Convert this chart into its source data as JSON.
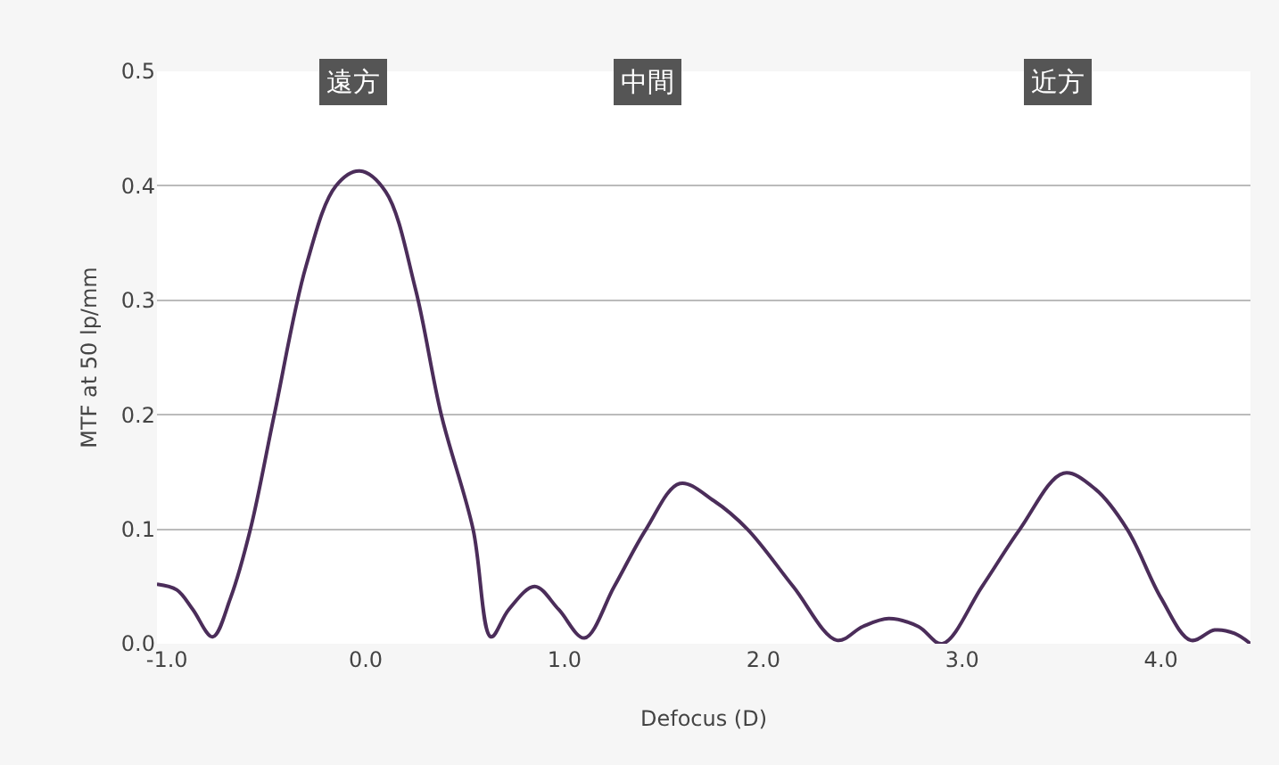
{
  "chart_data": {
    "type": "line",
    "xlabel": "Defocus (D)",
    "ylabel": "MTF at 50 lp/mm",
    "x": [
      -1.05,
      -0.95,
      -0.87,
      -0.77,
      -0.68,
      -0.58,
      -0.46,
      -0.3,
      -0.15,
      -0.03,
      0.1,
      0.25,
      0.38,
      0.54,
      0.63,
      0.72,
      0.85,
      0.97,
      1.1,
      1.25,
      1.41,
      1.58,
      1.75,
      1.92,
      2.15,
      2.37,
      2.5,
      2.63,
      2.78,
      2.9,
      3.1,
      3.29,
      3.51,
      3.67,
      3.83,
      4.0,
      4.15,
      4.27,
      4.37,
      4.45
    ],
    "series": [
      {
        "color": "#4b2d5a",
        "values": [
          0.052,
          0.047,
          0.03,
          0.006,
          0.04,
          0.1,
          0.2,
          0.33,
          0.4,
          0.413,
          0.395,
          0.31,
          0.2,
          0.1,
          0.006,
          0.03,
          0.05,
          0.03,
          0.005,
          0.05,
          0.1,
          0.14,
          0.125,
          0.1,
          0.05,
          0.003,
          0.015,
          0.022,
          0.015,
          0.0,
          0.05,
          0.1,
          0.149,
          0.135,
          0.1,
          0.04,
          0.003,
          0.012,
          0.009,
          0.0
        ]
      }
    ],
    "xlim": [
      -1.05,
      4.45
    ],
    "ylim": [
      0,
      0.5
    ],
    "xticks": [
      {
        "value": -1,
        "label": "-1.0"
      },
      {
        "value": 0,
        "label": "0.0"
      },
      {
        "value": 1,
        "label": "1.0"
      },
      {
        "value": 2,
        "label": "2.0"
      },
      {
        "value": 3,
        "label": "3.0"
      },
      {
        "value": 4,
        "label": "4.0"
      }
    ],
    "yticks": [
      {
        "value": 0,
        "label": "0.0"
      },
      {
        "value": 0.1,
        "label": "0.1"
      },
      {
        "value": 0.2,
        "label": "0.2"
      },
      {
        "value": 0.3,
        "label": "0.3"
      },
      {
        "value": 0.4,
        "label": "0.4"
      },
      {
        "value": 0.5,
        "label": "0.5"
      }
    ],
    "grid": "y",
    "marker": "none",
    "line_style": "solid",
    "annotations": [
      {
        "text": "遠方",
        "x": -0.06,
        "y": 0.49
      },
      {
        "text": "中間",
        "x": 1.42,
        "y": 0.49
      },
      {
        "text": "近方",
        "x": 3.48,
        "y": 0.49
      }
    ]
  }
}
